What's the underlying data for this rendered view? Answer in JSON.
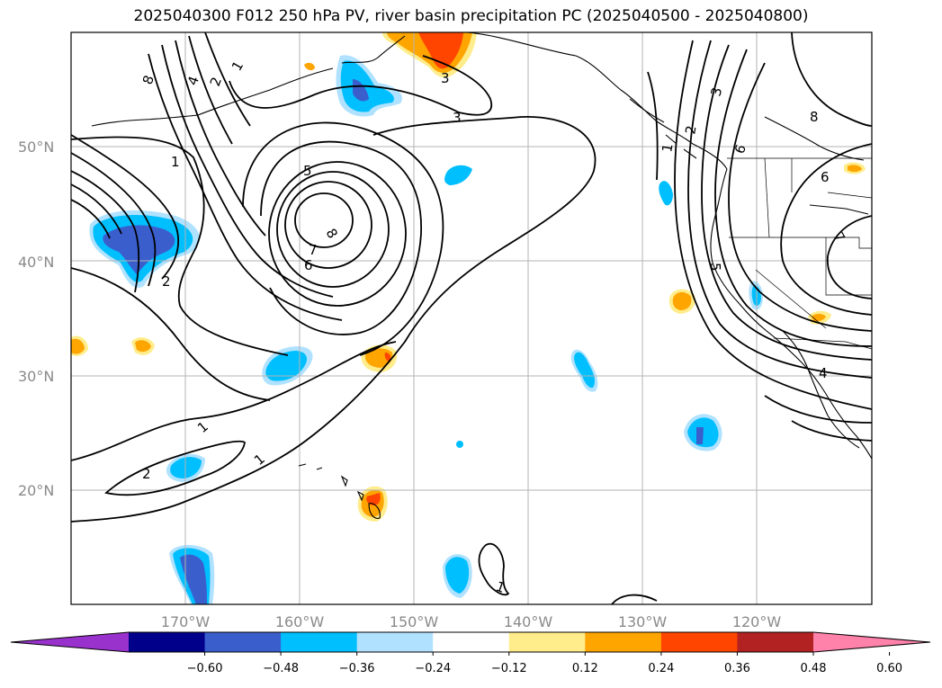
{
  "title": "2025040300 F012 250 hPa PV, river basin precipitation PC (2025040500 - 2025040800)",
  "map": {
    "lat_labels": [
      "50°N",
      "40°N",
      "30°N",
      "20°N"
    ],
    "lon_labels": [
      "170°W",
      "160°W",
      "150°W",
      "140°W",
      "130°W",
      "120°W"
    ],
    "contour_labels": [
      "8",
      "4",
      "2",
      "1",
      "3",
      "3",
      "5",
      "8",
      "7",
      "6",
      "1",
      "2",
      "2",
      "1",
      "1",
      "2",
      "3",
      "6",
      "8",
      "6",
      "1",
      "5",
      "7",
      "4",
      "1"
    ]
  },
  "colorbar": {
    "ticks": [
      "−0.60",
      "−0.48",
      "−0.36",
      "−0.24",
      "−0.12",
      "0.12",
      "0.24",
      "0.36",
      "0.48",
      "0.60"
    ],
    "colors": [
      "#9932cc",
      "#00008b",
      "#3a5fcd",
      "#00bfff",
      "#b0e2ff",
      "#ffffff",
      "#ffec8b",
      "#ffa500",
      "#ff4500",
      "#b22222",
      "#ff82ab"
    ]
  }
}
